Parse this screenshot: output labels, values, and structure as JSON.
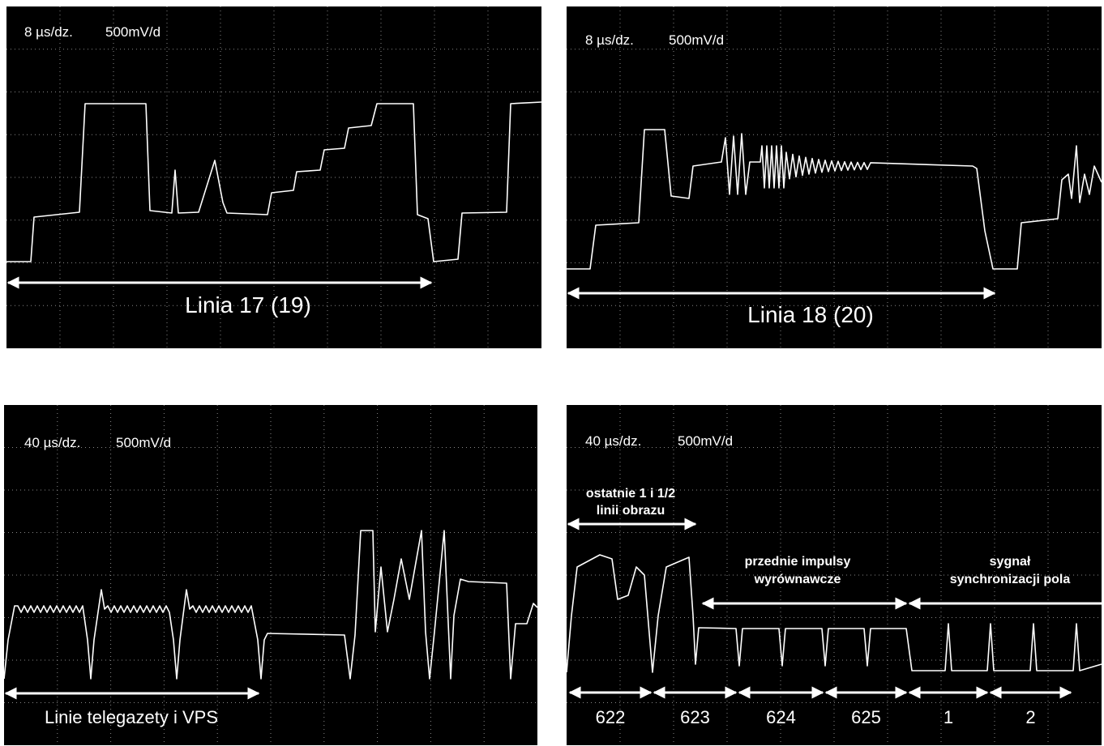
{
  "panels": [
    {
      "timebase": "8 µs/dz.",
      "voltage": "500mV/d",
      "label": "Linia 17 (19)"
    },
    {
      "timebase": "8 µs/dz.",
      "voltage": "500mV/d",
      "label": "Linia 18 (20)"
    },
    {
      "timebase": "40 µs/dz.",
      "voltage": "500mV/d",
      "label": "Linie telegazety i VPS"
    },
    {
      "timebase": "40 µs/dz.",
      "voltage": "500mV/d",
      "annotations": [
        {
          "lines": [
            "ostatnie 1 i 1/2",
            "linii obrazu"
          ]
        },
        {
          "lines": [
            "przednie impulsy",
            "wyrównawcze"
          ]
        },
        {
          "lines": [
            "sygnał",
            "synchronizacji pola"
          ]
        }
      ],
      "line_numbers": [
        "622",
        "623",
        "624",
        "625",
        "1",
        "2"
      ]
    }
  ]
}
